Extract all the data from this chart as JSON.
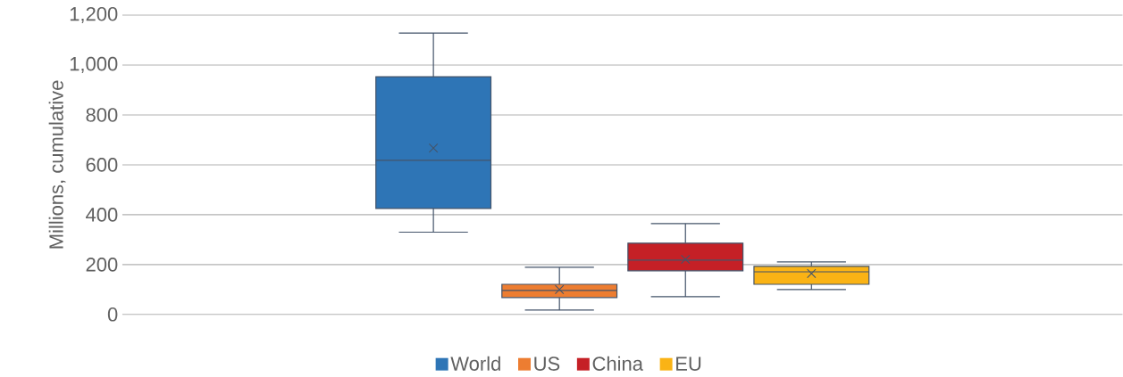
{
  "chart_data": {
    "type": "box",
    "ylabel": "Millions, cumulative",
    "categories": [
      null
    ],
    "ylim": [
      0,
      1200
    ],
    "yticks": [
      0,
      200,
      400,
      600,
      800,
      {
        "value": 1000,
        "label": "1,000"
      },
      {
        "value": 1200,
        "label": "1,200"
      }
    ],
    "grid": "y",
    "legend": "bottom",
    "series": [
      {
        "name": "World",
        "color": "#2e75b6",
        "boxes": [
          {
            "low": 330,
            "q1": 425,
            "median": 618,
            "q3": 953,
            "high": 1128,
            "mean": 667
          }
        ]
      },
      {
        "name": "US",
        "color": "#ed7d31",
        "boxes": [
          {
            "low": 18,
            "q1": 68,
            "median": 96,
            "q3": 121,
            "high": 189,
            "mean": 100
          }
        ]
      },
      {
        "name": "China",
        "color": "#c52026",
        "boxes": [
          {
            "low": 71,
            "q1": 175,
            "median": 218,
            "q3": 286,
            "high": 364,
            "mean": 221
          }
        ]
      },
      {
        "name": "EU",
        "color": "#fab315",
        "boxes": [
          {
            "low": 100,
            "q1": 121,
            "median": 171,
            "q3": 193,
            "high": 211,
            "mean": 164
          }
        ]
      }
    ]
  }
}
